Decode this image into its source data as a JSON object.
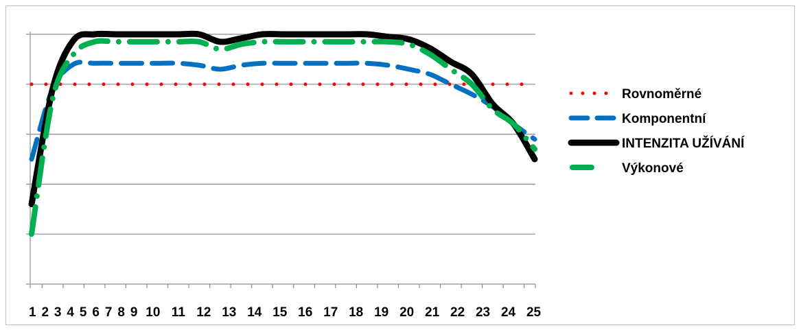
{
  "chart_data": {
    "type": "line",
    "title": "",
    "xlabel": "",
    "ylabel": "",
    "x": [
      "1",
      "2",
      "3",
      "4",
      "5",
      "6",
      "7",
      "8",
      "9",
      "10",
      "11",
      "12",
      "13",
      "14",
      "15",
      "16",
      "17",
      "18",
      "19",
      "20",
      "21",
      "22",
      "23",
      "24",
      "25"
    ],
    "ylim": [
      0,
      5
    ],
    "y_gridlines": [
      1,
      2,
      3,
      4,
      5
    ],
    "grid": true,
    "legend_position": "right",
    "series": [
      {
        "name": "Rovnoměrné",
        "color": "#ff0000",
        "style": "dotted",
        "values": [
          4.0,
          4.0,
          4.0,
          4.0,
          4.0,
          4.0,
          4.0,
          4.0,
          4.0,
          4.0,
          4.0,
          4.0,
          4.0,
          4.0,
          4.0,
          4.0,
          4.0,
          4.0,
          4.0,
          4.0,
          4.0,
          4.0,
          4.0,
          4.0,
          4.0
        ]
      },
      {
        "name": "Komponentní",
        "color": "#0070c0",
        "style": "dashed",
        "values": [
          2.5,
          3.9,
          4.4,
          4.42,
          4.42,
          4.42,
          4.42,
          4.42,
          4.38,
          4.3,
          4.38,
          4.42,
          4.42,
          4.42,
          4.42,
          4.42,
          4.42,
          4.38,
          4.3,
          4.2,
          4.0,
          3.8,
          3.55,
          3.2,
          2.9
        ]
      },
      {
        "name": "INTENZITA UŽÍVÁNÍ",
        "color": "#000000",
        "style": "solid",
        "values": [
          1.6,
          3.9,
          4.88,
          5.0,
          5.0,
          5.0,
          5.0,
          5.0,
          5.0,
          4.85,
          4.92,
          5.0,
          5.0,
          5.0,
          5.0,
          5.0,
          5.0,
          4.95,
          4.9,
          4.72,
          4.45,
          4.2,
          3.6,
          3.2,
          2.5
        ]
      },
      {
        "name": "Výkonové",
        "color": "#00b050",
        "style": "dashdot",
        "values": [
          1.0,
          3.7,
          4.6,
          4.85,
          4.85,
          4.85,
          4.85,
          4.85,
          4.85,
          4.7,
          4.8,
          4.85,
          4.85,
          4.85,
          4.85,
          4.85,
          4.85,
          4.85,
          4.8,
          4.6,
          4.3,
          4.0,
          3.5,
          3.2,
          2.7
        ]
      }
    ]
  }
}
